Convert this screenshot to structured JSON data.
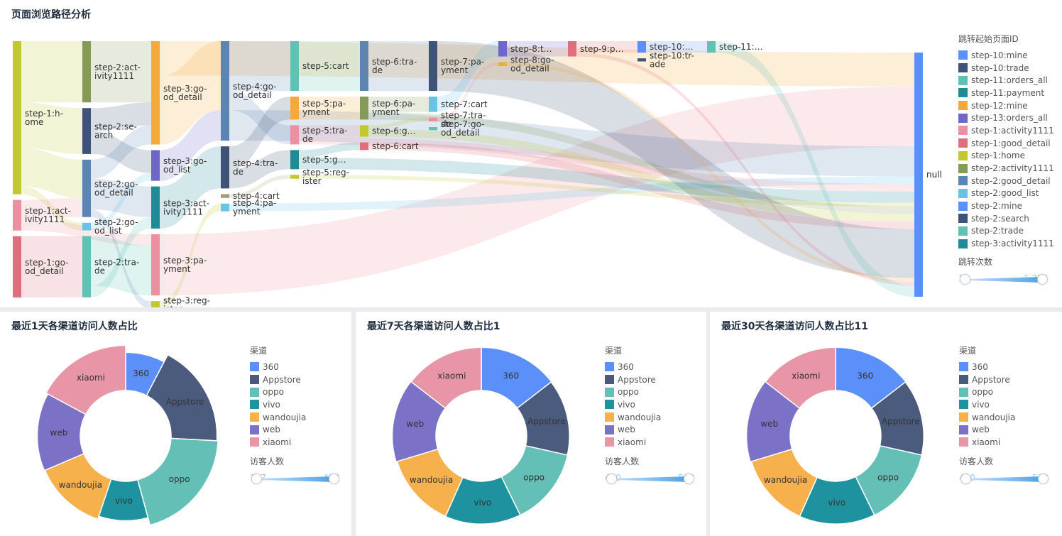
{
  "sankey": {
    "title": "页面浏览路径分析",
    "legend_title": "跳转起始页面ID",
    "legend_items": [
      {
        "label": "step-10:mine",
        "color": "#5b8ff9"
      },
      {
        "label": "step-10:trade",
        "color": "#3f5378"
      },
      {
        "label": "step-11:orders_all",
        "color": "#5fc2b5"
      },
      {
        "label": "step-11:payment",
        "color": "#1e8b96"
      },
      {
        "label": "step-12:mine",
        "color": "#f6a93b"
      },
      {
        "label": "step-13:orders_all",
        "color": "#6e66c9"
      },
      {
        "label": "step-1:activity1111",
        "color": "#ec8fa0"
      },
      {
        "label": "step-1:good_detail",
        "color": "#e06f7e"
      },
      {
        "label": "step-1:home",
        "color": "#c2c72f"
      },
      {
        "label": "step-2:activity1111",
        "color": "#849a56"
      },
      {
        "label": "step-2:good_detail",
        "color": "#5d85b3"
      },
      {
        "label": "step-2:good_list",
        "color": "#68c3e5"
      },
      {
        "label": "step-2:mine",
        "color": "#5b8ff9"
      },
      {
        "label": "step-2:search",
        "color": "#3f5378"
      },
      {
        "label": "step-2:trade",
        "color": "#5fc2b5"
      },
      {
        "label": "step-3:activity1111",
        "color": "#1e8b96"
      }
    ],
    "visual_map": {
      "title": "跳转次数",
      "min": "1",
      "max": "1,753"
    }
  },
  "chart_data": [
    {
      "type": "sankey",
      "title": "页面浏览路径分析",
      "nodes": [
        {
          "name": "step-1:home",
          "label": "step-1:h-\nome",
          "color": "#c2c72f"
        },
        {
          "name": "step-1:activity1111",
          "label": "step-1:act-\nivity1111",
          "color": "#ec8fa0"
        },
        {
          "name": "step-1:good_detail",
          "label": "step-1:go-\nod_detail",
          "color": "#e06f7e"
        },
        {
          "name": "step-2:activity1111",
          "label": "step-2:act-\nivity1111",
          "color": "#849a56"
        },
        {
          "name": "step-2:search",
          "label": "step-2:se-\narch",
          "color": "#3f5378"
        },
        {
          "name": "step-2:good_detail",
          "label": "step-2:go-\nod_detail",
          "color": "#5d85b3"
        },
        {
          "name": "step-2:good_list",
          "label": "step-2:go-\nod_list",
          "color": "#68c3e5"
        },
        {
          "name": "step-2:trade",
          "label": "step-2:tra-\nde",
          "color": "#5fc2b5"
        },
        {
          "name": "step-3:good_detail",
          "label": "step-3:go-\nod_detail",
          "color": "#f6a93b"
        },
        {
          "name": "step-3:good_list",
          "label": "step-3:go-\nod_list",
          "color": "#6e66c9"
        },
        {
          "name": "step-3:activity1111",
          "label": "step-3:act-\nivity1111",
          "color": "#1e8b96"
        },
        {
          "name": "step-3:payment",
          "label": "step-3:pa-\nyment",
          "color": "#ec8fa0"
        },
        {
          "name": "step-3:register",
          "label": "step-3:reg-\nister",
          "color": "#c2c72f"
        },
        {
          "name": "step-4:good_detail",
          "label": "step-4:go-\nod_detail",
          "color": "#5d85b3"
        },
        {
          "name": "step-4:trade",
          "label": "step-4:tra-\nde",
          "color": "#3f5378"
        },
        {
          "name": "step-4:cart",
          "label": "step-4:cart",
          "color": "#a39e72"
        },
        {
          "name": "step-4:payment",
          "label": "step-4:pa-\nyment",
          "color": "#68c3e5"
        },
        {
          "name": "step-5:cart",
          "label": "step-5:cart",
          "color": "#5fc2b5"
        },
        {
          "name": "step-5:payment",
          "label": "step-5:pa-\nyment",
          "color": "#f6a93b"
        },
        {
          "name": "step-5:trade",
          "label": "step-5:tra-\nde",
          "color": "#ec8fa0"
        },
        {
          "name": "step-5:good_detail",
          "label": "step-5:g…",
          "color": "#1e8b96"
        },
        {
          "name": "step-5:register",
          "label": "step-5:reg-\nister",
          "color": "#c2c72f"
        },
        {
          "name": "step-6:trade",
          "label": "step-6:tra-\nde",
          "color": "#5d85b3"
        },
        {
          "name": "step-6:payment",
          "label": "step-6:pa-\nyment",
          "color": "#849a56"
        },
        {
          "name": "step-6:good_detail",
          "label": "step-6:g…",
          "color": "#c2c72f"
        },
        {
          "name": "step-6:cart",
          "label": "step-6:cart",
          "color": "#e06f7e"
        },
        {
          "name": "step-7:payment",
          "label": "step-7:pa-\nyment",
          "color": "#3f5378"
        },
        {
          "name": "step-7:cart",
          "label": "step-7:cart",
          "color": "#68c3e5"
        },
        {
          "name": "step-7:trade",
          "label": "step-7:tra-\nde",
          "color": "#ec8fa0"
        },
        {
          "name": "step-7:good_detail",
          "label": "step-7:go-\nod_detail",
          "color": "#5fc2b5"
        },
        {
          "name": "step-8:trade",
          "label": "step-8:t…",
          "color": "#6e66c9"
        },
        {
          "name": "step-8:good_detail",
          "label": "step-8:go-\nod_detail",
          "color": "#f6a93b"
        },
        {
          "name": "step-9:payment",
          "label": "step-9:p…",
          "color": "#e06f7e"
        },
        {
          "name": "step-10:mine",
          "label": "step-10:…",
          "color": "#5b8ff9"
        },
        {
          "name": "step-10:trade",
          "label": "step-10:tr-\nade",
          "color": "#3f5378"
        },
        {
          "name": "step-11:orders_all",
          "label": "step-11:…",
          "color": "#5fc2b5"
        },
        {
          "name": "null",
          "label": "null",
          "color": "#5b8ff9"
        }
      ],
      "links": [
        {
          "source": "step-1:home",
          "target": "step-2:activity1111",
          "value": 160
        },
        {
          "source": "step-1:home",
          "target": "step-2:search",
          "value": 120
        },
        {
          "source": "step-1:home",
          "target": "step-2:good_detail",
          "value": 100
        },
        {
          "source": "step-1:home",
          "target": "step-2:good_list",
          "value": 20
        },
        {
          "source": "step-1:activity1111",
          "target": "step-2:good_detail",
          "value": 50
        },
        {
          "source": "step-1:activity1111",
          "target": "step-3:payment",
          "value": 30
        },
        {
          "source": "step-1:good_detail",
          "target": "step-2:trade",
          "value": 160
        },
        {
          "source": "step-2:activity1111",
          "target": "step-3:good_detail",
          "value": 160
        },
        {
          "source": "step-2:search",
          "target": "step-3:good_detail",
          "value": 60
        },
        {
          "source": "step-2:search",
          "target": "step-3:good_list",
          "value": 60
        },
        {
          "source": "step-2:good_detail",
          "target": "step-3:good_detail",
          "value": 50
        },
        {
          "source": "step-2:good_detail",
          "target": "step-3:activity1111",
          "value": 80
        },
        {
          "source": "step-2:good_detail",
          "target": "step-3:register",
          "value": 20
        },
        {
          "source": "step-2:good_list",
          "target": "step-3:good_list",
          "value": 20
        },
        {
          "source": "step-2:trade",
          "target": "step-3:payment",
          "value": 130
        },
        {
          "source": "step-2:trade",
          "target": "step-3:activity1111",
          "value": 30
        },
        {
          "source": "step-3:good_detail",
          "target": "null",
          "value": 90
        },
        {
          "source": "step-3:good_detail",
          "target": "step-4:good_detail",
          "value": 180
        },
        {
          "source": "step-3:good_list",
          "target": "step-4:good_detail",
          "value": 80
        },
        {
          "source": "step-3:activity1111",
          "target": "step-4:trade",
          "value": 110
        },
        {
          "source": "step-3:payment",
          "target": "null",
          "value": 160
        },
        {
          "source": "step-3:register",
          "target": "step-4:payment",
          "value": 20
        },
        {
          "source": "step-4:good_detail",
          "target": "step-5:cart",
          "value": 130
        },
        {
          "source": "step-4:good_detail",
          "target": "step-5:trade",
          "value": 50
        },
        {
          "source": "step-4:good_detail",
          "target": "null",
          "value": 80
        },
        {
          "source": "step-4:trade",
          "target": "step-5:payment",
          "value": 60
        },
        {
          "source": "step-4:trade",
          "target": "step-5:good_detail",
          "value": 50
        },
        {
          "source": "step-4:trade",
          "target": "step-4:cart",
          "value": 0
        },
        {
          "source": "step-4:cart",
          "target": "step-5:register",
          "value": 10
        },
        {
          "source": "step-4:payment",
          "target": "null",
          "value": 20
        },
        {
          "source": "step-5:cart",
          "target": "step-6:trade",
          "value": 130
        },
        {
          "source": "step-5:payment",
          "target": "step-6:payment",
          "value": 60
        },
        {
          "source": "step-5:trade",
          "target": "step-6:good_detail",
          "value": 30
        },
        {
          "source": "step-5:trade",
          "target": "null",
          "value": 20
        },
        {
          "source": "step-5:good_detail",
          "target": "step-6:cart",
          "value": 20
        },
        {
          "source": "step-5:good_detail",
          "target": "null",
          "value": 30
        },
        {
          "source": "step-5:register",
          "target": "null",
          "value": 10
        },
        {
          "source": "step-6:trade",
          "target": "step-7:payment",
          "value": 130
        },
        {
          "source": "step-6:payment",
          "target": "step-7:cart",
          "value": 40
        },
        {
          "source": "step-6:payment",
          "target": "null",
          "value": 20
        },
        {
          "source": "step-6:good_detail",
          "target": "step-7:trade",
          "value": 10
        },
        {
          "source": "step-6:good_detail",
          "target": "null",
          "value": 20
        },
        {
          "source": "step-6:cart",
          "target": "null",
          "value": 20
        },
        {
          "source": "step-7:payment",
          "target": "null",
          "value": 130
        },
        {
          "source": "step-7:cart",
          "target": "step-8:trade",
          "value": 40
        },
        {
          "source": "step-7:trade",
          "target": "step-8:good_detail",
          "value": 10
        },
        {
          "source": "step-8:trade",
          "target": "step-9:payment",
          "value": 40
        },
        {
          "source": "step-8:good_detail",
          "target": "null",
          "value": 10
        },
        {
          "source": "step-9:payment",
          "target": "step-10:mine",
          "value": 30
        },
        {
          "source": "step-9:payment",
          "target": "null",
          "value": 10
        },
        {
          "source": "step-10:mine",
          "target": "step-11:orders_all",
          "value": 30
        },
        {
          "source": "step-11:orders_all",
          "target": "null",
          "value": 30
        }
      ]
    },
    {
      "type": "pie",
      "title": "最近1天各渠道访问人数占比",
      "legend_title": "渠道",
      "visual_map": {
        "title": "访客人数",
        "min": "187",
        "max": "488"
      },
      "slices": [
        {
          "name": "360",
          "value": 187,
          "color": "#5b8ff9"
        },
        {
          "name": "Appstore",
          "value": 447,
          "color": "#4b5b7e"
        },
        {
          "name": "oppo",
          "value": 488,
          "color": "#64c0b6"
        },
        {
          "name": "vivo",
          "value": 230,
          "color": "#1e929e"
        },
        {
          "name": "wandoujia",
          "value": 330,
          "color": "#f7b14c"
        },
        {
          "name": "web",
          "value": 350,
          "color": "#7b72c8"
        },
        {
          "name": "xiaomi",
          "value": 420,
          "color": "#e895a7"
        }
      ]
    },
    {
      "type": "pie",
      "title": "最近7天各渠道访问人数占比1",
      "legend_title": "渠道",
      "visual_map": {
        "title": "访客人数",
        "min": "410",
        "max": "500"
      },
      "slices": [
        {
          "name": "360",
          "value": 480,
          "color": "#5b8ff9"
        },
        {
          "name": "Appstore",
          "value": 460,
          "color": "#4b5b7e"
        },
        {
          "name": "oppo",
          "value": 470,
          "color": "#64c0b6"
        },
        {
          "name": "vivo",
          "value": 460,
          "color": "#1e929e"
        },
        {
          "name": "wandoujia",
          "value": 450,
          "color": "#f7b14c"
        },
        {
          "name": "web",
          "value": 500,
          "color": "#7b72c8"
        },
        {
          "name": "xiaomi",
          "value": 480,
          "color": "#e895a7"
        }
      ]
    },
    {
      "type": "pie",
      "title": "最近30天各渠道访问人数占比11",
      "legend_title": "渠道",
      "visual_map": {
        "title": "访客人数",
        "min": "410",
        "max": "500"
      },
      "slices": [
        {
          "name": "360",
          "value": 480,
          "color": "#5b8ff9"
        },
        {
          "name": "Appstore",
          "value": 460,
          "color": "#4b5b7e"
        },
        {
          "name": "oppo",
          "value": 470,
          "color": "#64c0b6"
        },
        {
          "name": "vivo",
          "value": 460,
          "color": "#1e929e"
        },
        {
          "name": "wandoujia",
          "value": 450,
          "color": "#f7b14c"
        },
        {
          "name": "web",
          "value": 500,
          "color": "#7b72c8"
        },
        {
          "name": "xiaomi",
          "value": 480,
          "color": "#e895a7"
        }
      ]
    }
  ]
}
